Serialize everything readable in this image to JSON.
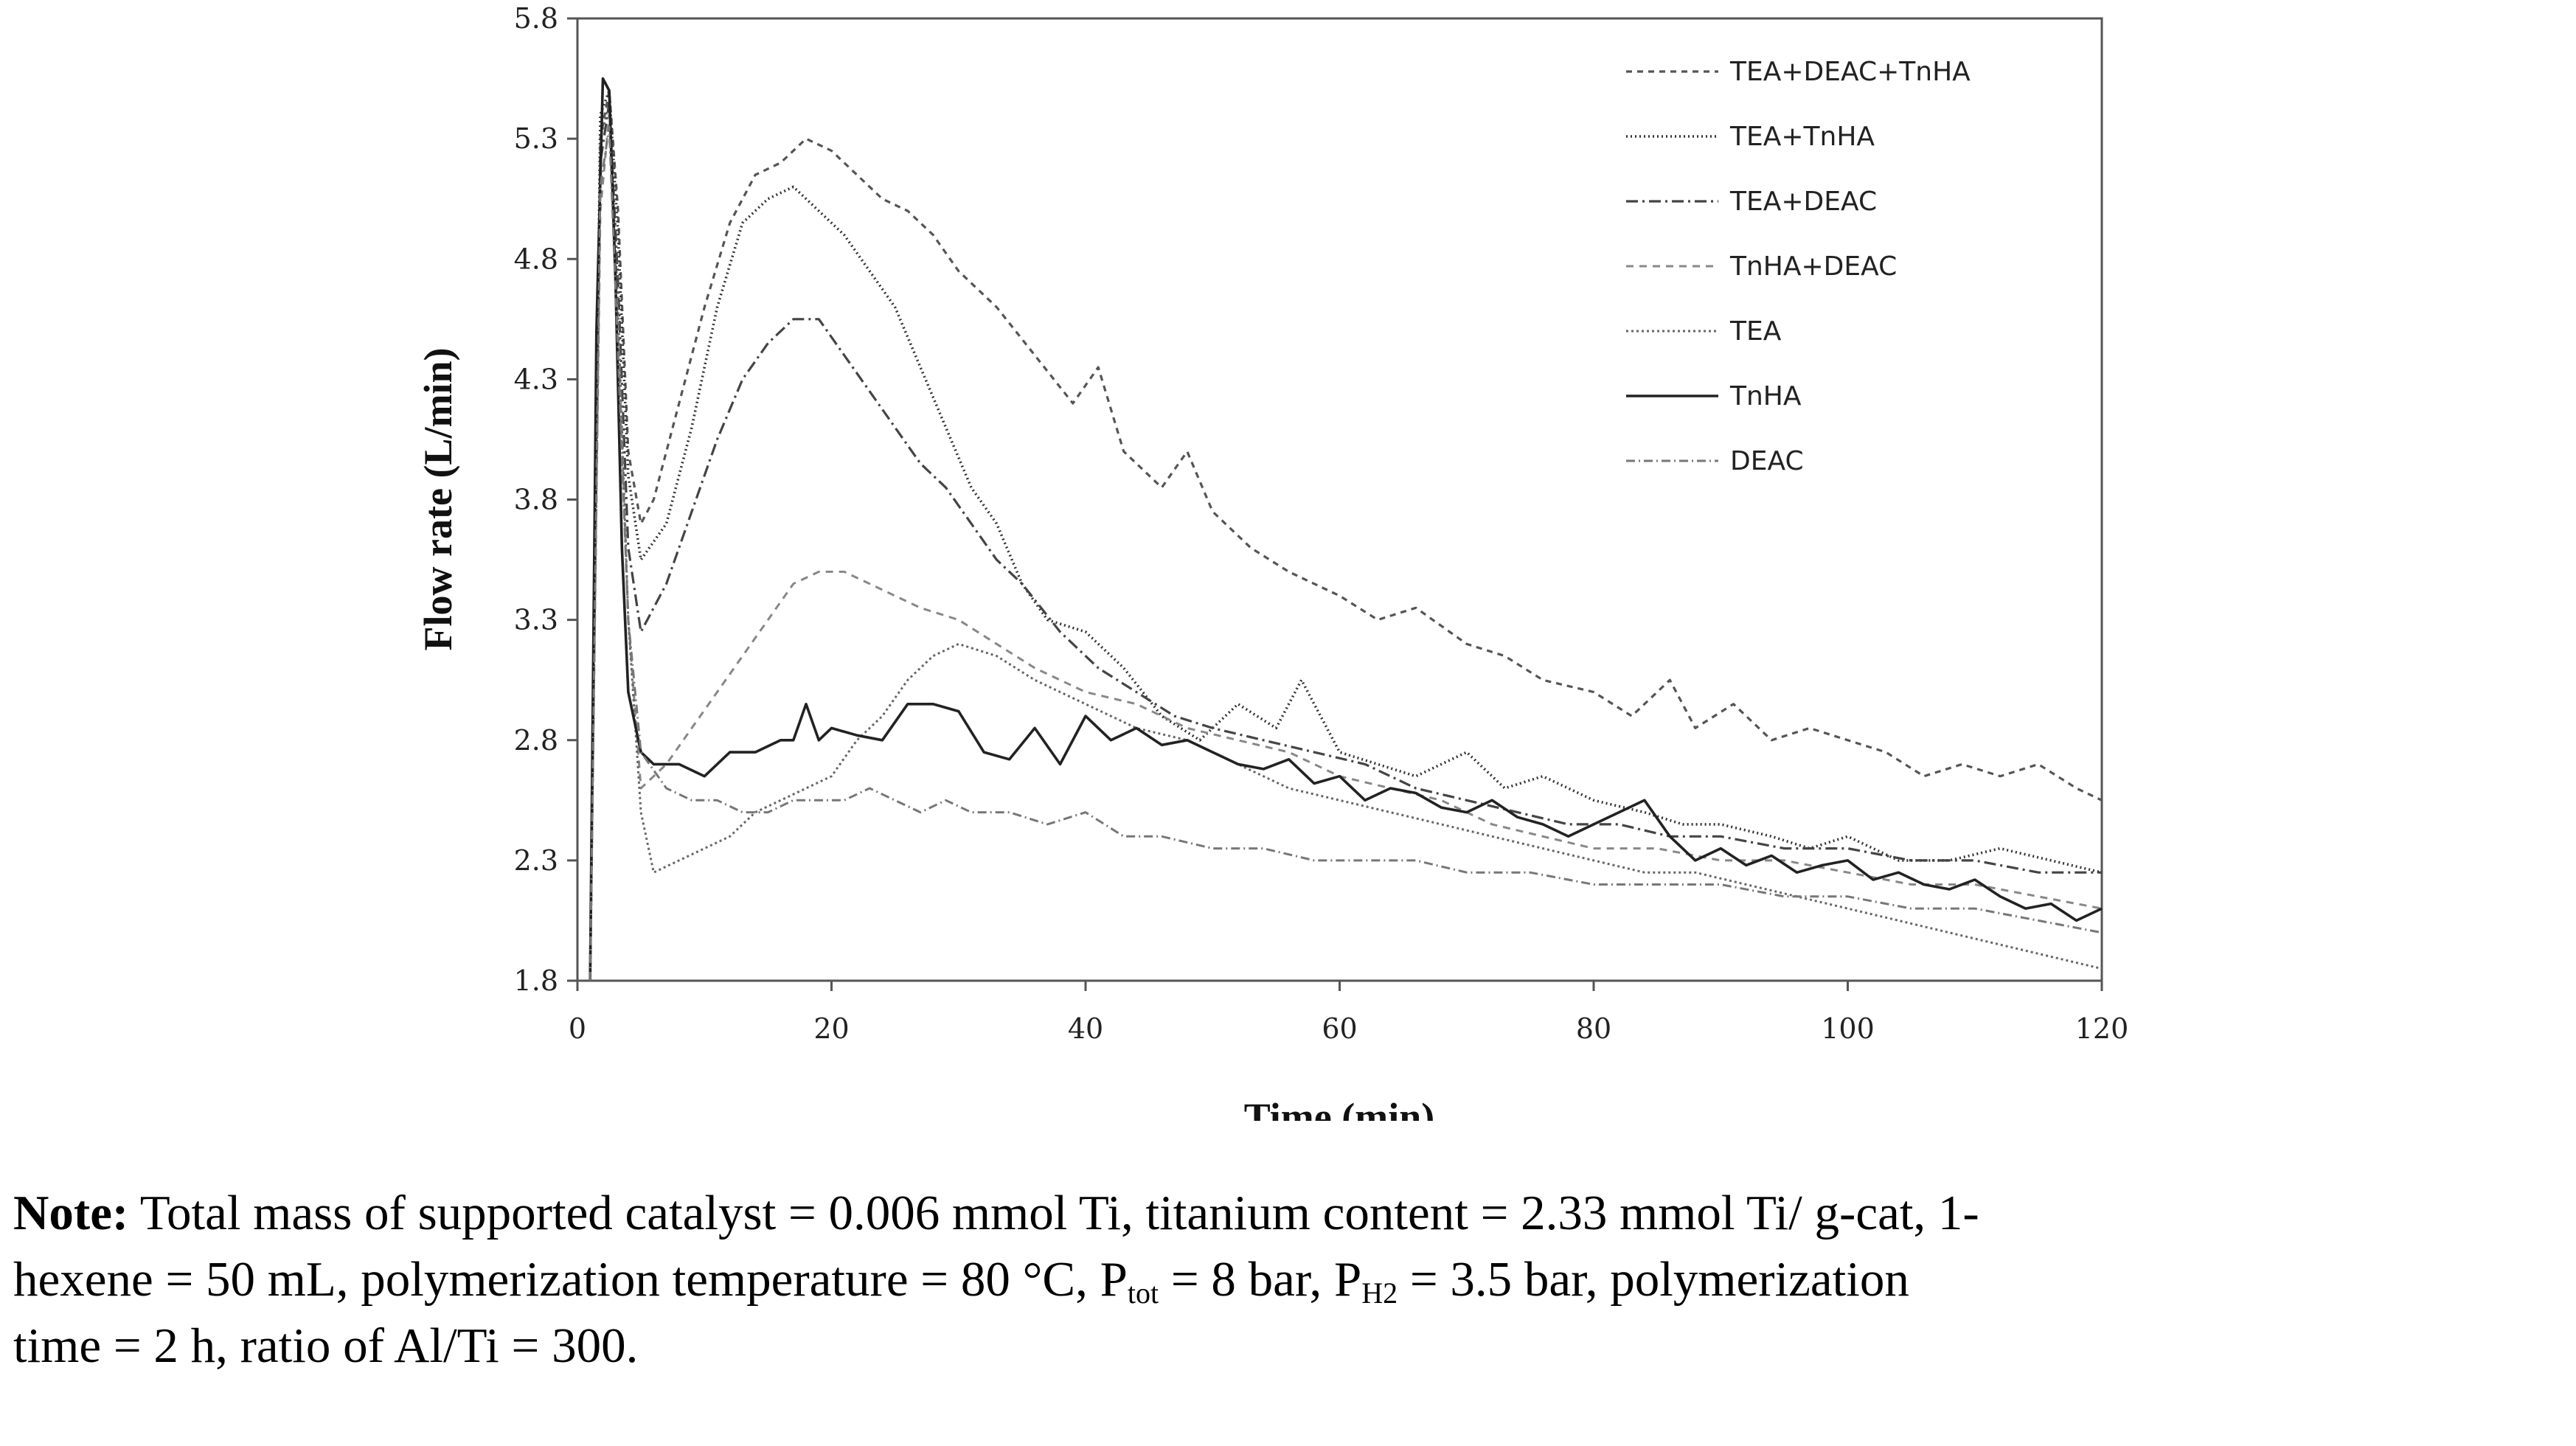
{
  "chart_data": {
    "type": "line",
    "title": "",
    "xlabel": "Time (min)",
    "ylabel": "Flow rate (L/min)",
    "xlim": [
      0,
      120
    ],
    "ylim": [
      1.8,
      5.8
    ],
    "xticks": [
      0,
      20,
      40,
      60,
      80,
      100,
      120
    ],
    "yticks": [
      1.8,
      2.3,
      2.8,
      3.3,
      3.8,
      4.3,
      4.8,
      5.3,
      5.8
    ],
    "ytick_labels": [
      "1.8",
      "2.3",
      "2.8",
      "3.3",
      "3.8",
      "4.3",
      "4.8",
      "5.3",
      "5.8"
    ],
    "legend_position": "top-right",
    "series": [
      {
        "name": "TEA+DEAC+TnHA",
        "dash": "8,7",
        "width": 3.2,
        "color": "#555555",
        "x": [
          1,
          1.8,
          2.5,
          3.2,
          4,
          5,
          6,
          8,
          10,
          12,
          14,
          16,
          18,
          20,
          22,
          24,
          26,
          28,
          30,
          33,
          36,
          39,
          41,
          43,
          46,
          48,
          50,
          53,
          56,
          60,
          63,
          66,
          70,
          73,
          76,
          80,
          83,
          86,
          88,
          91,
          94,
          97,
          100,
          103,
          106,
          109,
          112,
          115,
          118,
          120
        ],
        "y": [
          1.8,
          5.3,
          5.5,
          5.0,
          4.0,
          3.7,
          3.8,
          4.2,
          4.6,
          4.95,
          5.15,
          5.2,
          5.3,
          5.25,
          5.15,
          5.05,
          5.0,
          4.9,
          4.75,
          4.6,
          4.4,
          4.2,
          4.35,
          4.0,
          3.85,
          4.0,
          3.75,
          3.6,
          3.5,
          3.4,
          3.3,
          3.35,
          3.2,
          3.15,
          3.05,
          3.0,
          2.9,
          3.05,
          2.85,
          2.95,
          2.8,
          2.85,
          2.8,
          2.75,
          2.65,
          2.7,
          2.65,
          2.7,
          2.6,
          2.55
        ]
      },
      {
        "name": "TEA+TnHA",
        "dash": "2,4",
        "width": 3.6,
        "color": "#333333",
        "x": [
          1,
          1.8,
          2.5,
          3.2,
          4,
          5,
          7,
          9,
          11,
          13,
          15,
          17,
          19,
          21,
          23,
          25,
          27,
          29,
          31,
          33,
          35,
          37,
          40,
          43,
          46,
          49,
          52,
          55,
          57,
          60,
          63,
          66,
          70,
          73,
          76,
          80,
          84,
          87,
          90,
          94,
          97,
          100,
          104,
          108,
          112,
          116,
          120
        ],
        "y": [
          1.8,
          5.4,
          5.5,
          4.9,
          3.9,
          3.55,
          3.7,
          4.1,
          4.6,
          4.95,
          5.05,
          5.1,
          5.0,
          4.9,
          4.75,
          4.6,
          4.35,
          4.1,
          3.85,
          3.7,
          3.45,
          3.3,
          3.25,
          3.1,
          2.9,
          2.8,
          2.95,
          2.85,
          3.05,
          2.75,
          2.7,
          2.65,
          2.75,
          2.6,
          2.65,
          2.55,
          2.5,
          2.45,
          2.45,
          2.4,
          2.35,
          2.4,
          2.3,
          2.3,
          2.35,
          2.3,
          2.25
        ]
      },
      {
        "name": "TEA+DEAC",
        "dash": "16,6,3,6",
        "width": 3.2,
        "color": "#444444",
        "x": [
          1,
          1.8,
          2.5,
          3.2,
          4,
          5,
          7,
          9,
          11,
          13,
          15,
          17,
          19,
          21,
          23,
          25,
          27,
          29,
          31,
          33,
          35,
          38,
          41,
          44,
          47,
          50,
          54,
          58,
          62,
          66,
          70,
          74,
          78,
          82,
          86,
          90,
          95,
          100,
          105,
          110,
          115,
          120
        ],
        "y": [
          1.8,
          5.2,
          5.45,
          4.7,
          3.6,
          3.25,
          3.45,
          3.75,
          4.05,
          4.3,
          4.45,
          4.55,
          4.55,
          4.4,
          4.25,
          4.1,
          3.95,
          3.85,
          3.7,
          3.55,
          3.45,
          3.25,
          3.1,
          3.0,
          2.9,
          2.85,
          2.8,
          2.75,
          2.7,
          2.6,
          2.55,
          2.5,
          2.45,
          2.45,
          2.4,
          2.4,
          2.35,
          2.35,
          2.3,
          2.3,
          2.25,
          2.25
        ]
      },
      {
        "name": "TnHA+DEAC",
        "dash": "10,8",
        "width": 3.0,
        "color": "#888888",
        "x": [
          1,
          1.8,
          2.5,
          3.2,
          4,
          5,
          7,
          9,
          11,
          13,
          15,
          17,
          19,
          21,
          23,
          25,
          27,
          30,
          33,
          36,
          40,
          44,
          48,
          52,
          56,
          60,
          64,
          68,
          72,
          76,
          80,
          85,
          90,
          95,
          100,
          105,
          110,
          115,
          120
        ],
        "y": [
          1.8,
          5.0,
          5.4,
          4.5,
          3.3,
          2.6,
          2.7,
          2.85,
          3.0,
          3.15,
          3.3,
          3.45,
          3.5,
          3.5,
          3.45,
          3.4,
          3.35,
          3.3,
          3.2,
          3.1,
          3.0,
          2.95,
          2.85,
          2.8,
          2.75,
          2.65,
          2.6,
          2.55,
          2.45,
          2.4,
          2.35,
          2.35,
          2.3,
          2.3,
          2.25,
          2.2,
          2.2,
          2.15,
          2.1
        ]
      },
      {
        "name": "TEA",
        "dash": "3,4",
        "width": 3.0,
        "color": "#666666",
        "x": [
          1,
          1.8,
          2.5,
          3.2,
          4,
          5,
          6,
          8,
          10,
          12,
          14,
          16,
          18,
          20,
          22,
          24,
          26,
          28,
          30,
          33,
          36,
          40,
          44,
          48,
          52,
          56,
          60,
          64,
          68,
          72,
          76,
          80,
          84,
          88,
          92,
          96,
          100,
          104,
          108,
          112,
          116,
          120
        ],
        "y": [
          1.8,
          5.3,
          5.45,
          4.6,
          3.3,
          2.5,
          2.25,
          2.3,
          2.35,
          2.4,
          2.5,
          2.55,
          2.6,
          2.65,
          2.8,
          2.9,
          3.05,
          3.15,
          3.2,
          3.15,
          3.05,
          2.95,
          2.85,
          2.8,
          2.7,
          2.6,
          2.55,
          2.5,
          2.45,
          2.4,
          2.35,
          2.3,
          2.25,
          2.25,
          2.2,
          2.15,
          2.1,
          2.05,
          2.0,
          1.95,
          1.9,
          1.85
        ]
      },
      {
        "name": "TnHA",
        "dash": "",
        "width": 3.6,
        "color": "#222222",
        "x": [
          1,
          1.5,
          2,
          2.5,
          3,
          3.5,
          4,
          5,
          6,
          8,
          10,
          12,
          14,
          16,
          17,
          18,
          19,
          20,
          22,
          24,
          26,
          28,
          30,
          32,
          34,
          36,
          38,
          40,
          42,
          44,
          46,
          48,
          50,
          52,
          54,
          56,
          58,
          60,
          62,
          64,
          66,
          68,
          70,
          72,
          74,
          76,
          78,
          80,
          82,
          84,
          86,
          88,
          90,
          92,
          94,
          96,
          98,
          100,
          102,
          104,
          106,
          108,
          110,
          112,
          114,
          116,
          118,
          120
        ],
        "y": [
          1.8,
          4.5,
          5.55,
          5.5,
          4.7,
          3.6,
          3.0,
          2.75,
          2.7,
          2.7,
          2.65,
          2.75,
          2.75,
          2.8,
          2.8,
          2.95,
          2.8,
          2.85,
          2.82,
          2.8,
          2.95,
          2.95,
          2.92,
          2.75,
          2.72,
          2.85,
          2.7,
          2.9,
          2.8,
          2.85,
          2.78,
          2.8,
          2.75,
          2.7,
          2.68,
          2.72,
          2.62,
          2.65,
          2.55,
          2.6,
          2.58,
          2.52,
          2.5,
          2.55,
          2.48,
          2.45,
          2.4,
          2.45,
          2.5,
          2.55,
          2.4,
          2.3,
          2.35,
          2.28,
          2.32,
          2.25,
          2.28,
          2.3,
          2.22,
          2.25,
          2.2,
          2.18,
          2.22,
          2.15,
          2.1,
          2.12,
          2.05,
          2.1
        ]
      },
      {
        "name": "DEAC",
        "dash": "12,5,2,5",
        "width": 3.0,
        "color": "#777777",
        "x": [
          1,
          1.8,
          2.5,
          3.2,
          4,
          5,
          7,
          9,
          11,
          13,
          15,
          17,
          19,
          21,
          23,
          25,
          27,
          29,
          31,
          34,
          37,
          40,
          43,
          46,
          50,
          54,
          58,
          62,
          66,
          70,
          75,
          80,
          85,
          90,
          95,
          100,
          105,
          110,
          115,
          120
        ],
        "y": [
          1.8,
          5.1,
          5.35,
          4.4,
          3.3,
          2.75,
          2.6,
          2.55,
          2.55,
          2.5,
          2.5,
          2.55,
          2.55,
          2.55,
          2.6,
          2.55,
          2.5,
          2.55,
          2.5,
          2.5,
          2.45,
          2.5,
          2.4,
          2.4,
          2.35,
          2.35,
          2.3,
          2.3,
          2.3,
          2.25,
          2.25,
          2.2,
          2.2,
          2.2,
          2.15,
          2.15,
          2.1,
          2.1,
          2.05,
          2.0
        ]
      }
    ]
  },
  "note": {
    "label": "Note:",
    "line1": "Total mass of supported catalyst = 0.006 mmol Ti, titanium content = 2.33 mmol Ti/ g-cat, 1-",
    "line2_a": "hexene = 50 mL, polymerization temperature = 80 °C, P",
    "line2_sub1": "tot",
    "line2_b": " = 8 bar, P",
    "line2_sub2": "H2",
    "line2_c": " = 3.5 bar, polymerization",
    "line3": "time = 2 h, ratio of Al/Ti = 300."
  }
}
